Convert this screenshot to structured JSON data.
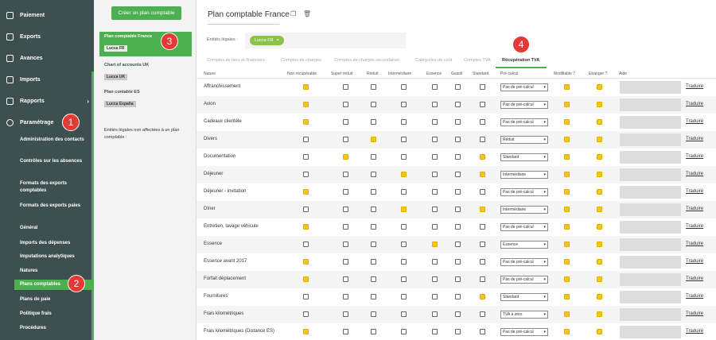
{
  "nav": {
    "top_items": [
      {
        "label": "Paiement",
        "icon": "payment-icon"
      },
      {
        "label": "Exports",
        "icon": "export-icon"
      },
      {
        "label": "Avances",
        "icon": "advances-icon"
      },
      {
        "label": "Imports",
        "icon": "import-icon"
      },
      {
        "label": "Rapports",
        "icon": "reports-icon",
        "chevron": "›"
      },
      {
        "label": "Paramétrage",
        "icon": "gear-icon"
      }
    ],
    "sub_items": [
      {
        "label": "Administration des contacts"
      },
      {
        "label": "Contrôles sur les absences"
      },
      {
        "label": "Formats des exports comptables"
      },
      {
        "label": "Formats des exports paies"
      },
      {
        "label": "Général"
      },
      {
        "label": "Imports des dépenses"
      },
      {
        "label": "Imputations analytiques"
      },
      {
        "label": "Natures"
      },
      {
        "label": "Plans comptables",
        "active": true
      },
      {
        "label": "Plans de paie"
      },
      {
        "label": "Politique frais"
      },
      {
        "label": "Procédures"
      }
    ]
  },
  "middle": {
    "create_button": "Créer un plan comptable",
    "plans": [
      {
        "name": "Plan comptable France",
        "tag": "Lucca FR",
        "active": true
      },
      {
        "name": "Chart of accounts UK",
        "tag": "Lucca UK"
      },
      {
        "name": "Plan contable ES",
        "tag": "Lucca España"
      }
    ],
    "unassigned_note": "Entités légales non affectées à un plan comptable :"
  },
  "main": {
    "title": "Plan comptable France",
    "entities_label": "Entités légales :",
    "entity_chip": "Lucca FR",
    "chip_close": "×",
    "tabs": [
      "Comptes de tiers et financiers",
      "Comptes de charges",
      "Comptes de charges secondaires",
      "Catégories de coût",
      "Comptes TVA",
      "Récupération TVA"
    ],
    "active_tab": "Récupération TVA",
    "columns": [
      "Nature",
      "Non récupérable",
      "Super réduit",
      "Réduit",
      "Intermédiaire",
      "Essence",
      "Gasoil",
      "Standard",
      "Pré-calcul",
      "Modifiable ?",
      "Etranger ?",
      "Aide"
    ],
    "translate_label": "Traduire",
    "rows": [
      {
        "nature": "Affranchissement",
        "checks": [
          1,
          0,
          0,
          0,
          0,
          0,
          0
        ],
        "precalc": "Pas de pré-calcul",
        "modifiable": 1,
        "etranger": 1
      },
      {
        "nature": "Avion",
        "checks": [
          1,
          0,
          0,
          0,
          0,
          0,
          0
        ],
        "precalc": "Pas de pré-calcul",
        "modifiable": 1,
        "etranger": 1
      },
      {
        "nature": "Cadeaux clientèle",
        "checks": [
          1,
          0,
          0,
          0,
          0,
          0,
          0
        ],
        "precalc": "Pas de pré-calcul",
        "modifiable": 1,
        "etranger": 1
      },
      {
        "nature": "Divers",
        "checks": [
          0,
          0,
          1,
          0,
          0,
          0,
          0
        ],
        "precalc": "Réduit",
        "modifiable": 1,
        "etranger": 1
      },
      {
        "nature": "Documentation",
        "checks": [
          0,
          1,
          0,
          0,
          0,
          0,
          1
        ],
        "precalc": "Standard",
        "modifiable": 1,
        "etranger": 1
      },
      {
        "nature": "Déjeuner",
        "checks": [
          0,
          0,
          0,
          1,
          0,
          0,
          1
        ],
        "precalc": "Intermédiaire",
        "modifiable": 1,
        "etranger": 1
      },
      {
        "nature": "Déjeuner - invitation",
        "checks": [
          1,
          0,
          0,
          0,
          0,
          0,
          0
        ],
        "precalc": "Pas de pré-calcul",
        "modifiable": 1,
        "etranger": 1
      },
      {
        "nature": "Dîner",
        "checks": [
          0,
          0,
          0,
          1,
          0,
          0,
          1
        ],
        "precalc": "Intermédiaire",
        "modifiable": 1,
        "etranger": 1
      },
      {
        "nature": "Entretien, lavage véhicule",
        "checks": [
          1,
          0,
          0,
          0,
          0,
          0,
          0
        ],
        "precalc": "Pas de pré-calcul",
        "modifiable": 1,
        "etranger": 1
      },
      {
        "nature": "Essence",
        "checks": [
          0,
          0,
          0,
          0,
          1,
          0,
          0
        ],
        "precalc": "Essence",
        "modifiable": 1,
        "etranger": 1
      },
      {
        "nature": "Essence avant 2017",
        "checks": [
          1,
          0,
          0,
          0,
          0,
          0,
          0
        ],
        "precalc": "Pas de pré-calcul",
        "modifiable": 1,
        "etranger": 1
      },
      {
        "nature": "Forfait déplacement",
        "checks": [
          1,
          0,
          0,
          0,
          0,
          0,
          0
        ],
        "precalc": "Pas de pré-calcul",
        "modifiable": 1,
        "etranger": 1
      },
      {
        "nature": "Fournitures",
        "checks": [
          0,
          0,
          0,
          0,
          0,
          0,
          1
        ],
        "precalc": "Standard",
        "modifiable": 1,
        "etranger": 1
      },
      {
        "nature": "Frais kilométriques",
        "checks": [
          0,
          0,
          0,
          0,
          0,
          0,
          0
        ],
        "precalc": "TVA à zéro",
        "modifiable": 1,
        "etranger": 1
      },
      {
        "nature": "Frais kilométriques (Distance ES)",
        "checks": [
          1,
          0,
          0,
          0,
          0,
          0,
          0
        ],
        "precalc": "Pas de pré-calcul",
        "modifiable": 1,
        "etranger": 1
      }
    ]
  },
  "callouts": [
    "1",
    "2",
    "3",
    "4"
  ],
  "colors": {
    "nav_bg": "#3d4f4f",
    "accent_green": "#4caf50",
    "checkbox_on": "#f5c518",
    "callout_red": "#e53935"
  }
}
